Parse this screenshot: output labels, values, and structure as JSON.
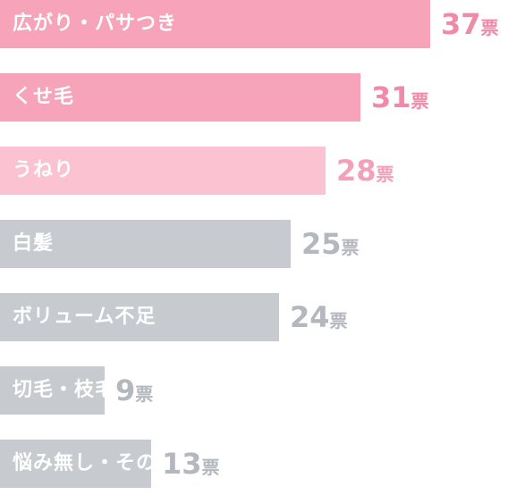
{
  "chart_data": {
    "type": "bar",
    "orientation": "horizontal",
    "unit": "票",
    "categories": [
      "広がり・パサつき",
      "くせ毛",
      "うねり",
      "白髪",
      "ボリューム不足",
      "切毛・枝毛",
      "悩み無し・その他"
    ],
    "values": [
      37,
      31,
      28,
      25,
      24,
      9,
      13
    ],
    "colors": [
      "#f7a3ba",
      "#f7a3ba",
      "#fbc3d1",
      "#c7cbd0",
      "#c7cbd0",
      "#c7cbd0",
      "#c7cbd0"
    ],
    "value_colors": [
      "#f08aa8",
      "#f08aa8",
      "#f3a0b8",
      "#b4b8be",
      "#b4b8be",
      "#b4b8be",
      "#b4b8be"
    ],
    "title": "",
    "xlabel": "",
    "ylabel": "",
    "grid": false,
    "legend": "none"
  }
}
